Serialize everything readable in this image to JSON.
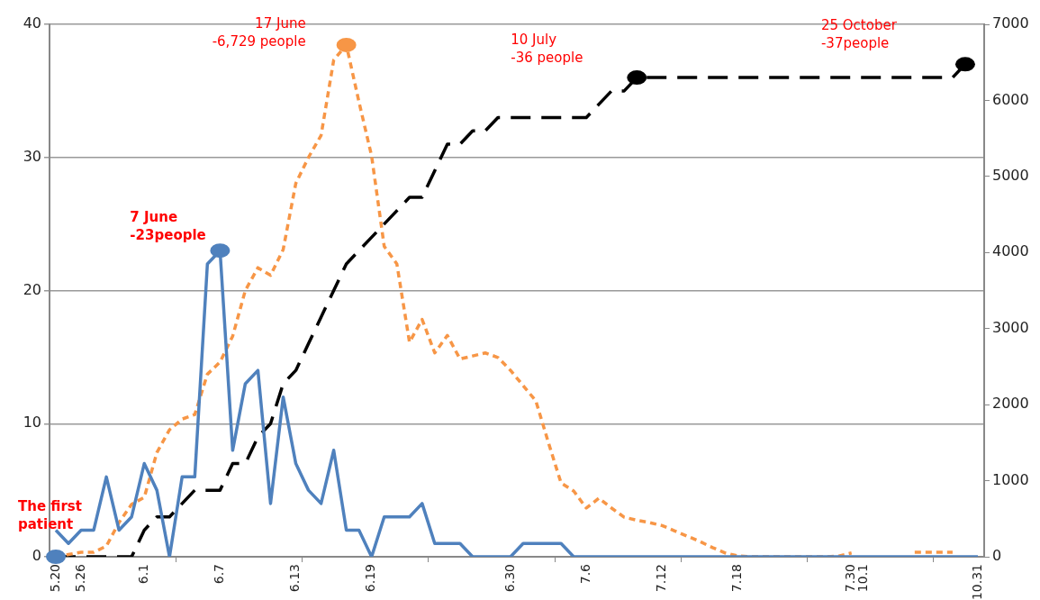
{
  "chart_data": {
    "type": "line",
    "categories": [
      "5.20",
      null,
      "5.26",
      null,
      null,
      null,
      null,
      "6.1",
      null,
      null,
      null,
      null,
      null,
      "6.7",
      null,
      null,
      null,
      null,
      null,
      "6.13",
      null,
      null,
      null,
      null,
      null,
      "6.19",
      null,
      null,
      null,
      null,
      null,
      null,
      null,
      null,
      null,
      null,
      "6.30",
      null,
      null,
      null,
      null,
      null,
      "7.6",
      null,
      null,
      null,
      null,
      null,
      "7.12",
      null,
      null,
      null,
      null,
      null,
      "7.18",
      null,
      null,
      null,
      null,
      null,
      null,
      null,
      null,
      "7.30",
      "10.1",
      null,
      null,
      null,
      null,
      null,
      null,
      null,
      null,
      "10.31"
    ],
    "series": [
      {
        "color": "#4f81bd",
        "line_style": "solid",
        "values": [
          2,
          1,
          2,
          2,
          6,
          2,
          3,
          7,
          5,
          0,
          6,
          6,
          22,
          23,
          8,
          13,
          14,
          4,
          12,
          7,
          5,
          4,
          8,
          2,
          2,
          0,
          3,
          3,
          3,
          4,
          1,
          1,
          1,
          0,
          0,
          0,
          0,
          1,
          1,
          1,
          1,
          0,
          0,
          0,
          0,
          0,
          0,
          0,
          0,
          0,
          0,
          0,
          0,
          0,
          0,
          0,
          0,
          0,
          0,
          0,
          0,
          0,
          0,
          0,
          0,
          0,
          0,
          0,
          0,
          0,
          0,
          0,
          0,
          0
        ]
      },
      {
        "color": "#f79646",
        "line_style": "dotted",
        "axis": "y2",
        "values": [
          0,
          30,
          60,
          60,
          140,
          450,
          690,
          780,
          1370,
          1670,
          1810,
          1870,
          2400,
          2560,
          2900,
          3500,
          3800,
          3700,
          4040,
          4910,
          5250,
          5540,
          6530,
          6729,
          5980,
          5270,
          4080,
          3850,
          2820,
          3120,
          2680,
          2910,
          2600,
          2640,
          2680,
          2620,
          2450,
          2250,
          2050,
          1500,
          970,
          865,
          640,
          770,
          640,
          520,
          480,
          450,
          410,
          340,
          270,
          200,
          120,
          50,
          10,
          0,
          0,
          0,
          0,
          0,
          0,
          0,
          10,
          50,
          null,
          null,
          null,
          null,
          60,
          60,
          60,
          60,
          null,
          null
        ]
      },
      {
        "color": "#000000",
        "line_style": "dashed",
        "values": [
          0,
          0,
          0,
          0,
          0,
          0,
          0,
          2,
          3,
          3,
          4,
          5,
          5,
          5,
          7,
          7,
          9,
          10,
          13,
          14,
          16,
          18,
          20,
          22,
          23,
          24,
          25,
          26,
          27,
          27,
          29,
          31,
          31,
          32,
          32,
          33,
          33,
          33,
          33,
          33,
          33,
          33,
          33,
          34,
          35,
          35,
          36,
          36,
          36,
          36,
          36,
          36,
          36,
          36,
          36,
          36,
          36,
          36,
          36,
          36,
          36,
          36,
          36,
          36,
          36,
          36,
          36,
          36,
          36,
          36,
          36,
          36,
          37,
          null
        ]
      }
    ],
    "ylim": [
      0,
      40
    ],
    "yticks": [
      0,
      10,
      20,
      30,
      40
    ],
    "y2lim": [
      0,
      7000
    ],
    "y2ticks": [
      0,
      1000,
      2000,
      3000,
      4000,
      5000,
      6000,
      7000
    ],
    "grid": "y",
    "legend": false,
    "marker": "none",
    "annotations": [
      {
        "text": "The first\npatient",
        "x": "5.20",
        "y": 0
      },
      "7 June\n-23people",
      "17 June\n-6,729 people",
      "10 July\n-36 people",
      "25 October\n-37people"
    ]
  }
}
